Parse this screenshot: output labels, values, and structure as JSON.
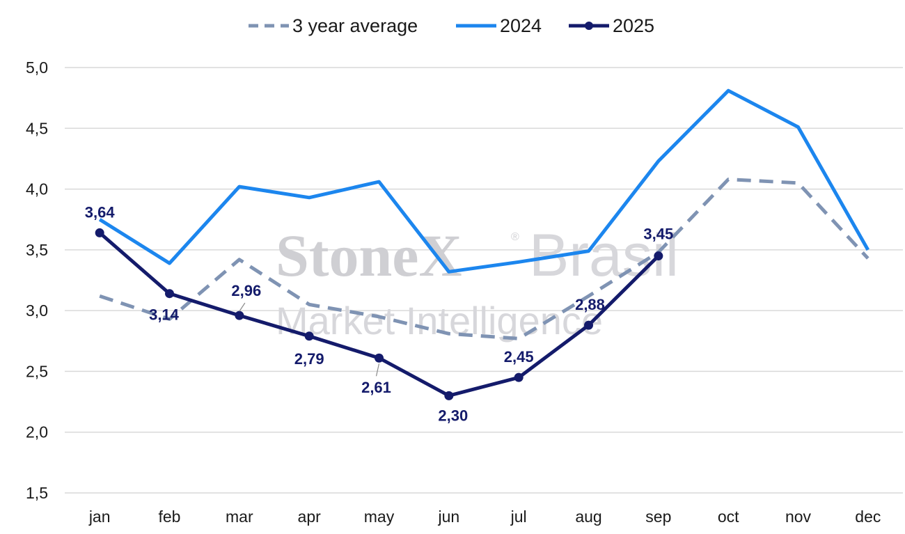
{
  "watermark": {
    "brand_bold": "StoneX",
    "registered": "®",
    "brand_light": "Brasil",
    "tagline": "Market Intelligence"
  },
  "chart_data": {
    "type": "line",
    "title": "",
    "xlabel": "",
    "ylabel": "",
    "categories": [
      "jan",
      "feb",
      "mar",
      "apr",
      "may",
      "jun",
      "jul",
      "aug",
      "sep",
      "oct",
      "nov",
      "dec"
    ],
    "ylim": [
      1.5,
      5.0
    ],
    "yticks": [
      1.5,
      2.0,
      2.5,
      3.0,
      3.5,
      4.0,
      4.5,
      5.0
    ],
    "ytick_labels": [
      "1,5",
      "2,0",
      "2,5",
      "3,0",
      "3,5",
      "4,0",
      "4,5",
      "5,0"
    ],
    "grid": true,
    "legend_position": "top-center",
    "series": [
      {
        "name": "3 year average",
        "color": "#7f93b3",
        "style": "dashed",
        "markers": false,
        "values": [
          3.12,
          2.93,
          3.42,
          3.05,
          2.95,
          2.81,
          2.77,
          3.12,
          3.48,
          4.08,
          4.05,
          3.43
        ],
        "data_labels": []
      },
      {
        "name": "2024",
        "color": "#1c86ee",
        "style": "solid",
        "markers": false,
        "values": [
          3.75,
          3.39,
          4.02,
          3.93,
          4.06,
          3.32,
          3.4,
          3.49,
          4.23,
          4.81,
          4.51,
          3.5
        ],
        "data_labels": []
      },
      {
        "name": "2025",
        "color": "#141b6b",
        "style": "solid",
        "markers": true,
        "values": [
          3.64,
          3.14,
          2.96,
          2.79,
          2.61,
          2.3,
          2.45,
          2.88,
          3.45,
          null,
          null,
          null
        ],
        "data_labels": [
          "3,64",
          "3,14",
          "2,96",
          "2,79",
          "2,61",
          "2,30",
          "2,45",
          "2,88",
          "3,45",
          null,
          null,
          null
        ]
      }
    ]
  }
}
